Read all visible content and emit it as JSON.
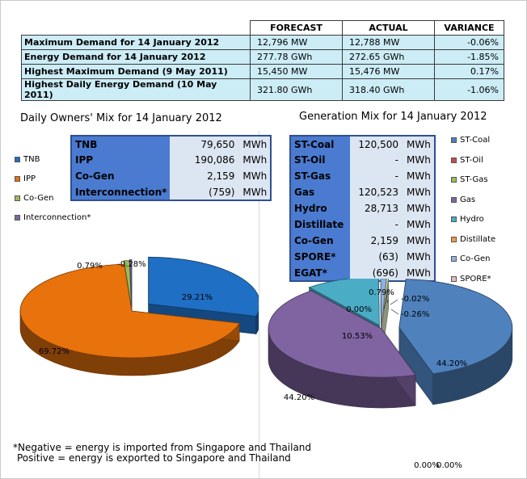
{
  "summary_table": {
    "headers": [
      "FORECAST",
      "ACTUAL",
      "VARIANCE"
    ],
    "rows": [
      {
        "label": "Maximum Demand for 14 January 2012",
        "forecast": "12,796 MW",
        "actual": "12,788 MW",
        "variance": "-0.06%"
      },
      {
        "label": "Energy Demand for 14 January 2012",
        "forecast": "277.78 GWh",
        "actual": "272.65 GWh",
        "variance": "-1.85%"
      },
      {
        "label": "Highest Maximum Demand (9 May 2011)",
        "forecast": "15,450 MW",
        "actual": "15,476 MW",
        "variance": "0.17%"
      },
      {
        "label": "Highest Daily Energy Demand (10 May 2011)",
        "forecast": "321.80 GWh",
        "actual": "318.40 GWh",
        "variance": "-1.06%"
      }
    ]
  },
  "owners_mix": {
    "title": "Daily Owners' Mix for 14 January 2012",
    "rows": [
      {
        "name": "TNB",
        "value": "79,650",
        "unit": "MWh"
      },
      {
        "name": "IPP",
        "value": "190,086",
        "unit": "MWh"
      },
      {
        "name": "Co-Gen",
        "value": "2,159",
        "unit": "MWh"
      },
      {
        "name": "Interconnection*",
        "value": "(759)",
        "unit": "MWh"
      }
    ]
  },
  "generation_mix": {
    "title": "Generation Mix for 14 January 2012",
    "rows": [
      {
        "name": "ST-Coal",
        "value": "120,500",
        "unit": "MWh"
      },
      {
        "name": "ST-Oil",
        "value": "-",
        "unit": "MWh"
      },
      {
        "name": "ST-Gas",
        "value": "-",
        "unit": "MWh"
      },
      {
        "name": "Gas",
        "value": "120,523",
        "unit": "MWh"
      },
      {
        "name": "Hydro",
        "value": "28,713",
        "unit": "MWh"
      },
      {
        "name": "Distillate",
        "value": "-",
        "unit": "MWh"
      },
      {
        "name": "Co-Gen",
        "value": "2,159",
        "unit": "MWh"
      },
      {
        "name": "SPORE*",
        "value": "(63)",
        "unit": "MWh"
      },
      {
        "name": "EGAT*",
        "value": "(696)",
        "unit": "MWh"
      }
    ]
  },
  "footnote": {
    "line1": "*Negative = energy is imported from Singapore and Thailand",
    "line2": "Positive = energy is exported to Singapore and Thailand"
  },
  "chart_data": [
    {
      "type": "pie",
      "title": "Daily Owners' Mix for 14 January 2012",
      "categories": [
        "TNB",
        "IPP",
        "Co-Gen",
        "Interconnection*"
      ],
      "values": [
        29.21,
        69.72,
        0.79,
        -0.28
      ],
      "data_labels": [
        "29.21%",
        "69.72%",
        "0.79%",
        "-0.28%"
      ],
      "colors": [
        "#1f6fc4",
        "#e8720c",
        "#9bbb59",
        "#8064a2"
      ],
      "legend_position": "left",
      "three_d": true
    },
    {
      "type": "pie",
      "title": "Generation Mix for 14 January 2012",
      "categories": [
        "ST-Coal",
        "ST-Oil",
        "ST-Gas",
        "Gas",
        "Hydro",
        "Distillate",
        "Co-Gen",
        "SPORE*",
        "EGAT*"
      ],
      "values": [
        44.2,
        0.0,
        0.0,
        44.2,
        10.53,
        0.0,
        0.79,
        -0.02,
        -0.26
      ],
      "data_labels": [
        "44.20%",
        "0.00%",
        "0.00%",
        "44.20%",
        "10.53%",
        "0.00%",
        "0.79%",
        "-0.02%",
        "-0.26%"
      ],
      "colors": [
        "#4f81bd",
        "#c0504d",
        "#9bbb59",
        "#8064a2",
        "#4bacc6",
        "#f79646",
        "#8db3e2",
        "#e6b9b8",
        "#d7e4bd"
      ],
      "legend_position": "right",
      "three_d": true
    }
  ]
}
